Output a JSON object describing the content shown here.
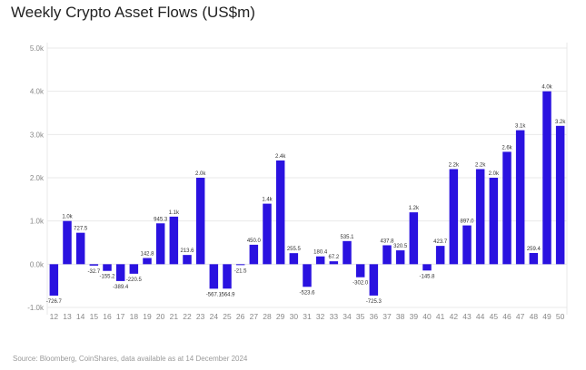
{
  "title": "Weekly Crypto Asset Flows (US$m)",
  "source": "Source: Bloomberg, CoinShares, data available as at 14 December 2024",
  "chart_data": {
    "type": "bar",
    "title": "Weekly Crypto Asset Flows (US$m)",
    "xlabel": "",
    "ylabel": "",
    "ylim": [
      -1000,
      5000
    ],
    "y_ticks": [
      "-1.0k",
      "0.0k",
      "1.0k",
      "2.0k",
      "3.0k",
      "4.0k",
      "5.0k"
    ],
    "y_tick_values": [
      -1000,
      0,
      1000,
      2000,
      3000,
      4000,
      5000
    ],
    "grid": true,
    "bar_color": "#2a12e0",
    "categories": [
      "12",
      "13",
      "14",
      "15",
      "16",
      "17",
      "18",
      "19",
      "20",
      "21",
      "22",
      "23",
      "24",
      "25",
      "26",
      "27",
      "28",
      "29",
      "30",
      "31",
      "32",
      "33",
      "34",
      "35",
      "36",
      "37",
      "38",
      "39",
      "40",
      "41",
      "42",
      "43",
      "44",
      "45",
      "46",
      "47",
      "48",
      "49",
      "50"
    ],
    "values": [
      -726.7,
      1000,
      727.5,
      -32.7,
      -155.2,
      -389.4,
      -220.5,
      142.8,
      945.3,
      1100,
      213.6,
      2000,
      -567.1,
      -564.9,
      -21.5,
      450.0,
      1400,
      2400,
      255.5,
      -523.6,
      180.4,
      67.2,
      535.1,
      -302.0,
      -725.3,
      437.8,
      320.5,
      1200,
      -145.8,
      423.7,
      2200,
      897.0,
      2200,
      2000,
      2600,
      3100,
      259.4,
      4000,
      3200
    ],
    "data_labels": [
      "-726.7",
      "1.0k",
      "727.5",
      "-32.7",
      "-155.2",
      "-389.4",
      "-220.5",
      "142.8",
      "945.3",
      "1.1k",
      "213.6",
      "2.0k",
      "-567.1",
      "-564.9",
      "-21.5",
      "450.0",
      "1.4k",
      "2.4k",
      "255.5",
      "-523.6",
      "180.4",
      "67.2",
      "535.1",
      "-302.0",
      "-725.3",
      "437.8",
      "320.5",
      "1.2k",
      "-145.8",
      "423.7",
      "2.2k",
      "897.0",
      "2.2k",
      "2.0k",
      "2.6k",
      "3.1k",
      "259.4",
      "4.0k",
      "3.2k"
    ]
  }
}
